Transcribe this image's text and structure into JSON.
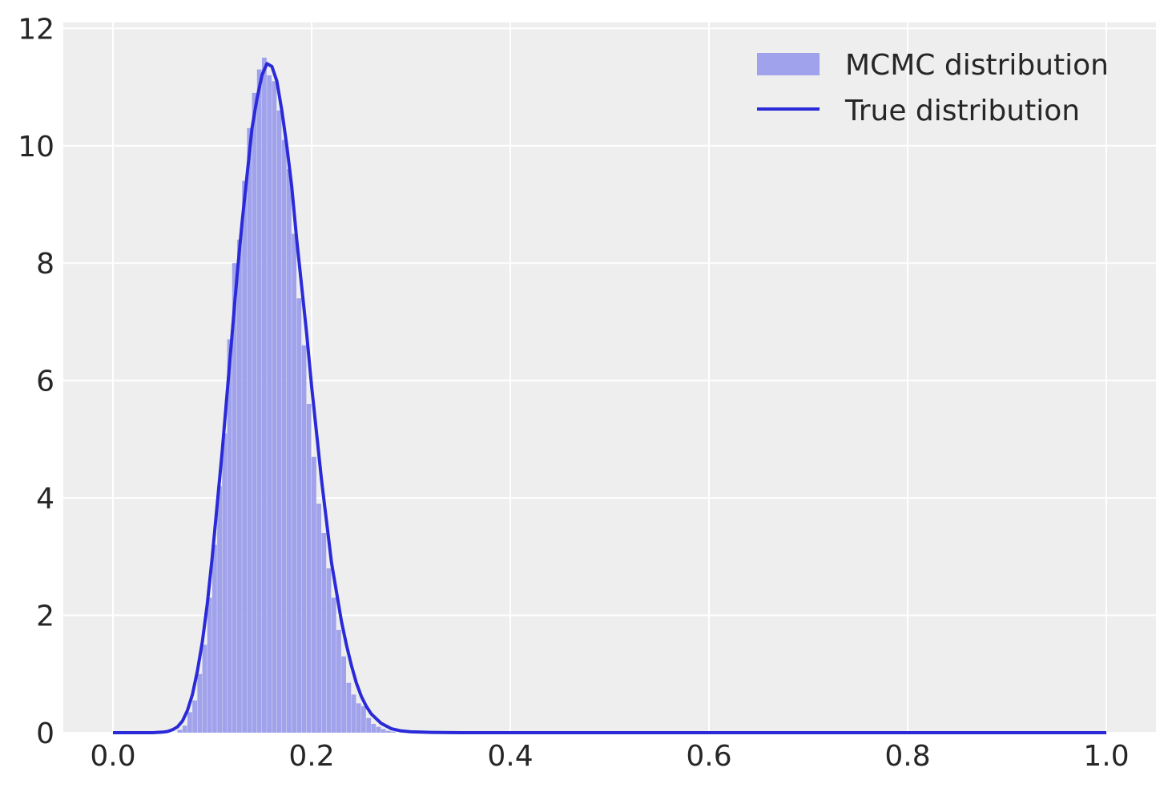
{
  "chart_data": {
    "type": "bar",
    "title": "",
    "xlabel": "",
    "ylabel": "",
    "xlim": [
      -0.05,
      1.05
    ],
    "ylim": [
      0,
      12.1
    ],
    "xticks": [
      "0.0",
      "0.2",
      "0.4",
      "0.6",
      "0.8",
      "1.0"
    ],
    "xtick_values": [
      0.0,
      0.2,
      0.4,
      0.6,
      0.8,
      1.0
    ],
    "yticks": [
      "0",
      "2",
      "4",
      "6",
      "8",
      "10",
      "12"
    ],
    "ytick_values": [
      0,
      2,
      4,
      6,
      8,
      10,
      12
    ],
    "grid": true,
    "legend_position": "top-right",
    "colors": {
      "background": "#eeeeee",
      "grid": "#ffffff",
      "histogram": "#a0a2ec",
      "line": "#2a2ad8"
    },
    "series": [
      {
        "name": "MCMC distribution",
        "kind": "histogram",
        "bin_width": 0.005,
        "bins_start": [
          0.065,
          0.07,
          0.075,
          0.08,
          0.085,
          0.09,
          0.095,
          0.1,
          0.105,
          0.11,
          0.115,
          0.12,
          0.125,
          0.13,
          0.135,
          0.14,
          0.145,
          0.15,
          0.155,
          0.16,
          0.165,
          0.17,
          0.175,
          0.18,
          0.185,
          0.19,
          0.195,
          0.2,
          0.205,
          0.21,
          0.215,
          0.22,
          0.225,
          0.23,
          0.235,
          0.24,
          0.245,
          0.25,
          0.255,
          0.26,
          0.265,
          0.27,
          0.275,
          0.28
        ],
        "values": [
          0.05,
          0.12,
          0.35,
          0.55,
          1.0,
          1.5,
          2.3,
          3.2,
          4.2,
          5.1,
          6.7,
          8.0,
          8.4,
          9.4,
          10.3,
          10.9,
          11.3,
          11.5,
          11.2,
          11.1,
          10.6,
          10.1,
          9.6,
          8.5,
          7.4,
          6.6,
          5.6,
          4.7,
          3.9,
          3.4,
          2.8,
          2.3,
          1.75,
          1.3,
          0.85,
          0.65,
          0.5,
          0.45,
          0.25,
          0.15,
          0.1,
          0.06,
          0.03,
          0.02
        ]
      },
      {
        "name": "True distribution",
        "kind": "line",
        "x": [
          0.0,
          0.04,
          0.05,
          0.055,
          0.06,
          0.065,
          0.07,
          0.075,
          0.08,
          0.085,
          0.09,
          0.095,
          0.1,
          0.105,
          0.11,
          0.115,
          0.12,
          0.125,
          0.13,
          0.135,
          0.14,
          0.145,
          0.15,
          0.155,
          0.16,
          0.165,
          0.17,
          0.175,
          0.18,
          0.185,
          0.19,
          0.195,
          0.2,
          0.205,
          0.21,
          0.215,
          0.22,
          0.225,
          0.23,
          0.235,
          0.24,
          0.245,
          0.25,
          0.255,
          0.26,
          0.27,
          0.28,
          0.29,
          0.3,
          0.32,
          0.35,
          0.4,
          0.5,
          0.6,
          0.7,
          0.8,
          0.9,
          1.0
        ],
        "y": [
          0,
          0.0,
          0.01,
          0.02,
          0.05,
          0.1,
          0.2,
          0.38,
          0.65,
          1.05,
          1.55,
          2.2,
          3.0,
          3.9,
          4.8,
          5.8,
          6.8,
          7.8,
          8.7,
          9.5,
          10.3,
          10.8,
          11.2,
          11.4,
          11.35,
          11.1,
          10.6,
          10.0,
          9.3,
          8.4,
          7.6,
          6.8,
          5.9,
          5.1,
          4.3,
          3.6,
          2.9,
          2.4,
          1.9,
          1.5,
          1.15,
          0.85,
          0.62,
          0.45,
          0.32,
          0.16,
          0.07,
          0.03,
          0.015,
          0.005,
          0.0,
          0,
          0,
          0,
          0,
          0,
          0,
          0
        ]
      }
    ]
  }
}
